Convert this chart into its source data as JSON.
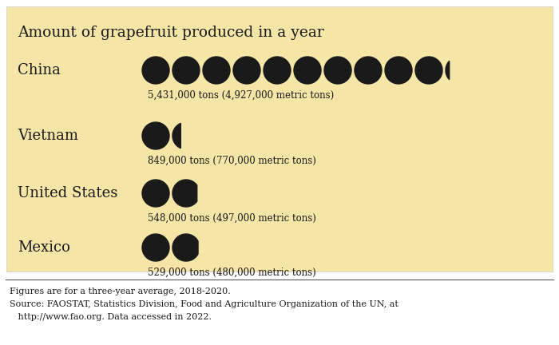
{
  "title": "Amount of grapefruit produced in a year",
  "bg_color": "#f5e6a8",
  "outer_bg": "#ffffff",
  "circle_color": "#1a1a1a",
  "text_color": "#1a1a1a",
  "unit": 500000,
  "countries": [
    {
      "name": "China",
      "value": 5431000,
      "label": "5,431,000 tons (4,927,000 metric tons)"
    },
    {
      "name": "Vietnam",
      "value": 849000,
      "label": "849,000 tons (770,000 metric tons)"
    },
    {
      "name": "United States",
      "value": 548000,
      "label": "548,000 tons (497,000 metric tons)"
    },
    {
      "name": "Mexico",
      "value": 529000,
      "label": "529,000 tons (480,000 metric tons)"
    }
  ],
  "footnote_lines": [
    "Figures are for a three-year average, 2018-2020.",
    "Source: FAOSTAT, Statistics Division, Food and Agriculture Organization of the UN, at",
    "   http://www.fao.org. Data accessed in 2022."
  ]
}
